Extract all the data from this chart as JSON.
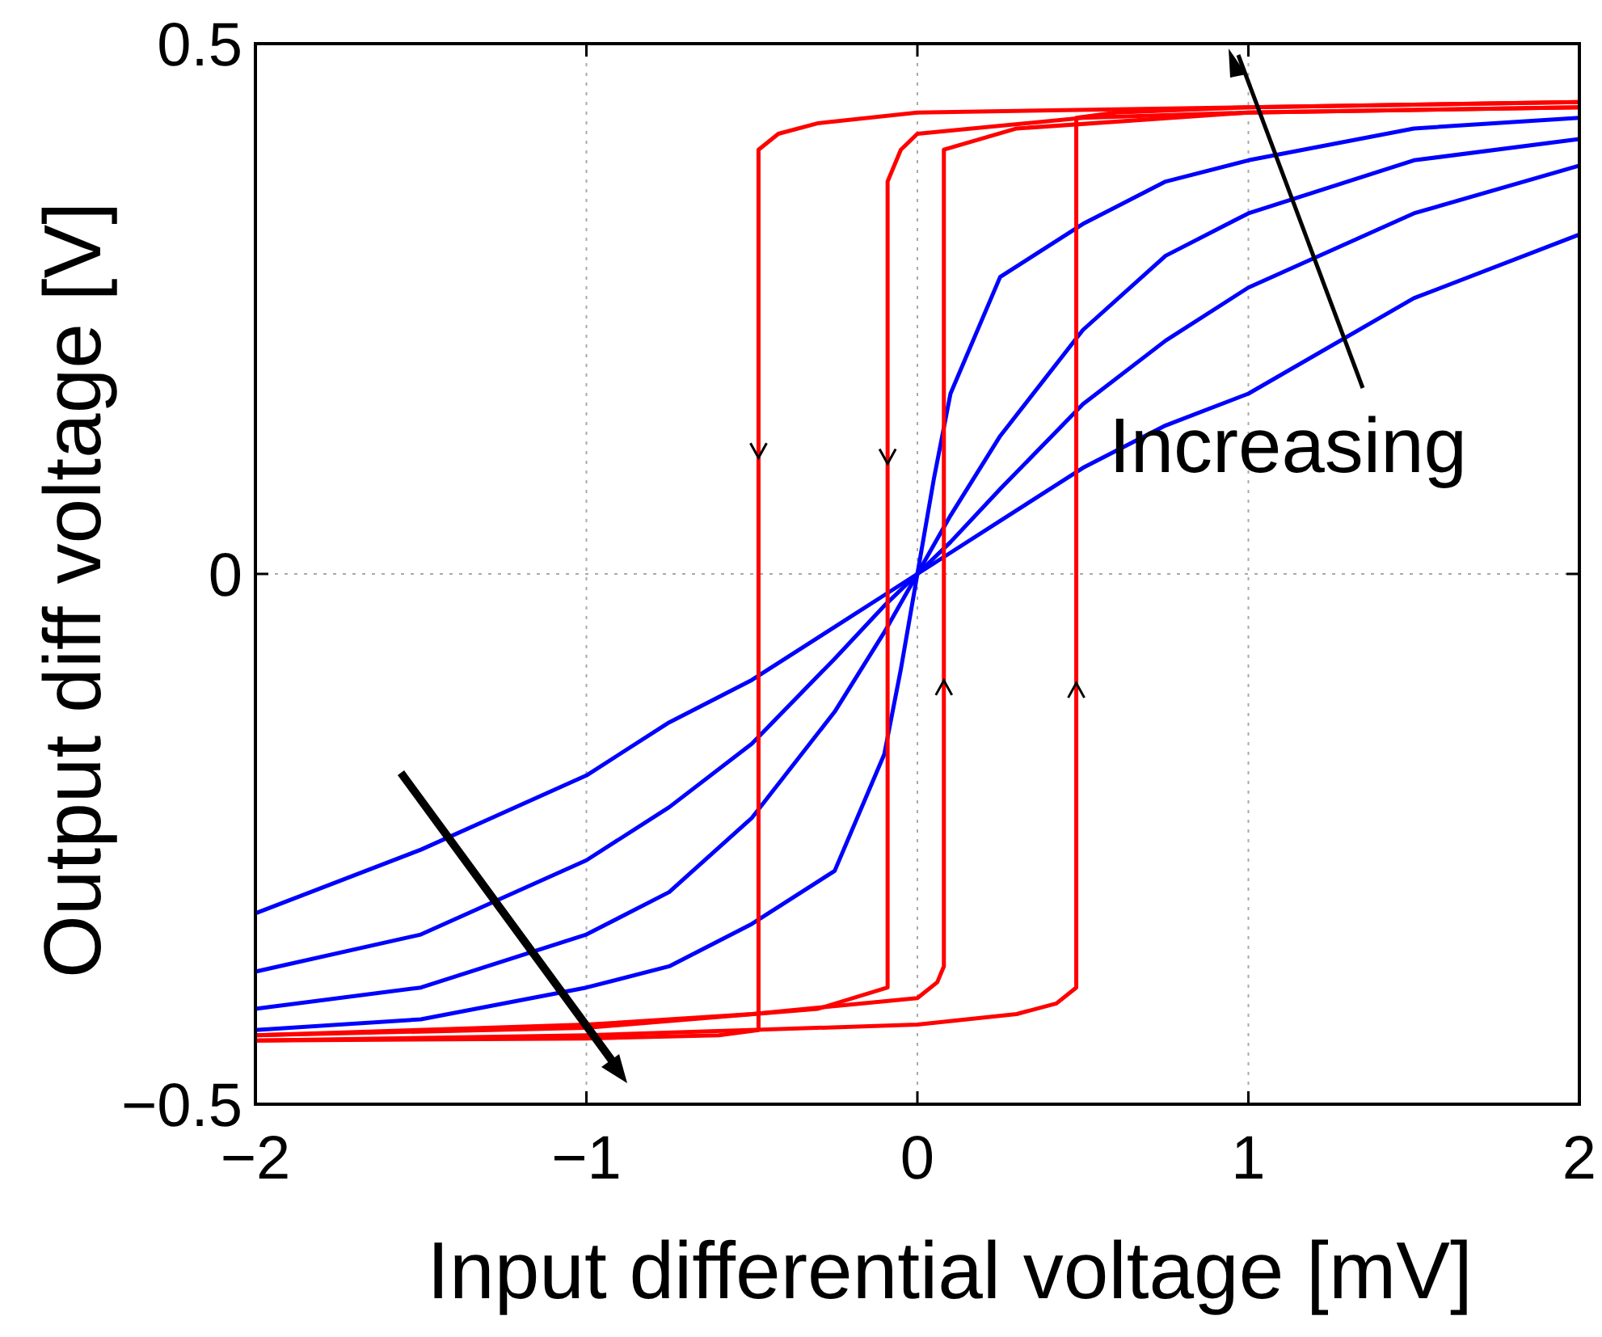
{
  "chart_data": {
    "type": "line",
    "xlabel": "Input differential voltage [mV]",
    "ylabel": "Output diff voltage [V]",
    "xlim": [
      -2,
      2
    ],
    "ylim": [
      -0.5,
      0.5
    ],
    "xticks": [
      -2,
      -1,
      0,
      1,
      2
    ],
    "yticks": [
      -0.5,
      0,
      0.5
    ],
    "grid": true,
    "marker": "none",
    "line_style": "solid",
    "annotations": [
      "Increasing"
    ],
    "series": [
      {
        "color": "#0000ff",
        "x": [
          -2,
          -1.5,
          -1,
          -0.75,
          -0.5,
          -0.25,
          -0.1,
          0,
          0.1,
          0.25,
          0.5,
          0.75,
          1,
          1.5,
          2
        ],
        "values": [
          -0.32,
          -0.26,
          -0.19,
          -0.14,
          -0.1,
          -0.05,
          -0.02,
          0,
          0.02,
          0.05,
          0.1,
          0.14,
          0.17,
          0.26,
          0.32
        ]
      },
      {
        "color": "#0000ff",
        "x": [
          -2,
          -1.5,
          -1,
          -0.75,
          -0.5,
          -0.25,
          -0.1,
          0,
          0.1,
          0.25,
          0.5,
          0.75,
          1,
          1.5,
          2
        ],
        "values": [
          -0.375,
          -0.34,
          -0.27,
          -0.22,
          -0.16,
          -0.08,
          -0.03,
          0,
          0.03,
          0.08,
          0.16,
          0.22,
          0.27,
          0.34,
          0.385
        ]
      },
      {
        "color": "#0000ff",
        "x": [
          -2,
          -1.5,
          -1,
          -0.75,
          -0.5,
          -0.25,
          -0.1,
          0,
          0.1,
          0.25,
          0.5,
          0.75,
          1,
          1.5,
          2
        ],
        "values": [
          -0.41,
          -0.39,
          -0.34,
          -0.3,
          -0.23,
          -0.13,
          -0.055,
          0,
          0.055,
          0.13,
          0.23,
          0.3,
          0.34,
          0.39,
          0.41
        ]
      },
      {
        "color": "#0000ff",
        "x": [
          -2,
          -1.5,
          -1,
          -0.75,
          -0.5,
          -0.25,
          -0.1,
          -0.05,
          0,
          0.05,
          0.1,
          0.25,
          0.5,
          0.75,
          1,
          1.5,
          2
        ],
        "values": [
          -0.43,
          -0.42,
          -0.39,
          -0.37,
          -0.33,
          -0.28,
          -0.17,
          -0.09,
          0,
          0.09,
          0.17,
          0.28,
          0.33,
          0.37,
          0.39,
          0.42,
          0.43
        ]
      },
      {
        "color": "#ff0000",
        "x": [
          -2,
          -1,
          0,
          0.3,
          0.42,
          0.48,
          0.48,
          0.6,
          1,
          2
        ],
        "values": [
          -0.44,
          -0.435,
          -0.425,
          -0.415,
          -0.405,
          -0.39,
          0.43,
          0.435,
          0.44,
          0.445
        ]
      },
      {
        "color": "#ff0000",
        "x": [
          -2,
          -1,
          -0.6,
          -0.48,
          -0.48,
          -0.42,
          -0.3,
          0,
          1,
          2
        ],
        "values": [
          -0.44,
          -0.438,
          -0.435,
          -0.43,
          0.4,
          0.415,
          0.425,
          0.435,
          0.44,
          0.445
        ]
      },
      {
        "color": "#ff0000",
        "x": [
          -2,
          -1,
          -0.5,
          0,
          0.06,
          0.08,
          0.08,
          0.3,
          1,
          2
        ],
        "values": [
          -0.435,
          -0.425,
          -0.415,
          -0.4,
          -0.385,
          -0.37,
          0.4,
          0.42,
          0.435,
          0.44
        ]
      },
      {
        "color": "#ff0000",
        "x": [
          -2,
          -1,
          -0.3,
          -0.09,
          -0.09,
          -0.05,
          0,
          0.5,
          1,
          2
        ],
        "values": [
          -0.435,
          -0.428,
          -0.41,
          -0.39,
          0.37,
          0.4,
          0.415,
          0.43,
          0.435,
          0.44
        ]
      }
    ]
  }
}
